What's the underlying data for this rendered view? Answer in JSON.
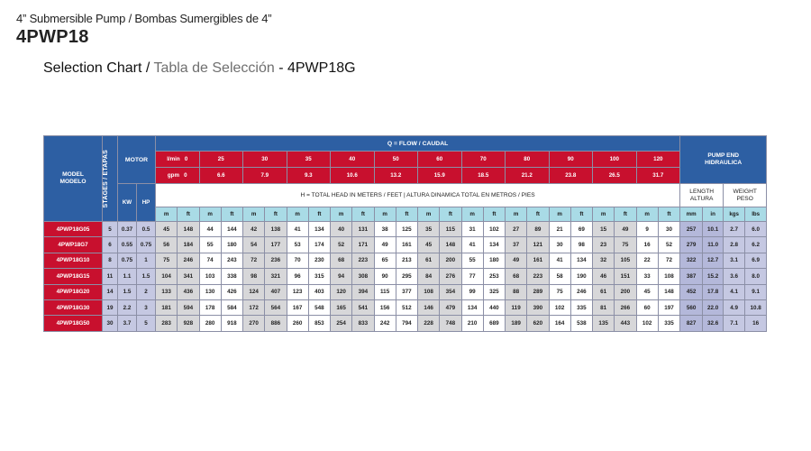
{
  "header": {
    "subtitle": "4” Submersible Pump / Bombas Sumergibles de 4”",
    "title": "4PWP18",
    "chart_title_en": "Selection Chart / ",
    "chart_title_es": "Tabla de Selección",
    "chart_title_model": " - 4PWP18G"
  },
  "table": {
    "col_model": "MODEL\nMODELO",
    "col_model_en": "MODEL",
    "col_model_es": "MODELO",
    "col_stages": "STAGES / ETAPAS",
    "col_motor": "MOTOR",
    "col_kw": "KW",
    "col_hp": "HP",
    "flow_header": "Q = FLOW / CAUDAL",
    "lmin_label": "l/min",
    "gpm_label": "gpm",
    "flow_lmin": [
      "0",
      "25",
      "30",
      "35",
      "40",
      "50",
      "60",
      "70",
      "80",
      "90",
      "100",
      "120"
    ],
    "flow_gpm": [
      "0",
      "6.6",
      "7.9",
      "9.3",
      "10.6",
      "13.2",
      "15.9",
      "18.5",
      "21.2",
      "23.8",
      "26.5",
      "31.7"
    ],
    "head_header": "H = TOTAL HEAD IN METERS / FEET | ALTURA DINAMICA TOTAL EN METROS / PIES",
    "pump_end_en": "PUMP END",
    "pump_end_es": "HIDRAULICA",
    "length_en": "LENGTH",
    "length_es": "ALTURA",
    "weight_en": "WEIGHT",
    "weight_es": "PESO",
    "unit_m": "m",
    "unit_ft": "ft",
    "unit_mm": "mm",
    "unit_in": "in",
    "unit_kgs": "kgs",
    "unit_lbs": "lbs",
    "rows": [
      {
        "model": "4PWP18G05",
        "stages": "5",
        "kw": "0.37",
        "hp": "0.5",
        "head": [
          "45",
          "148",
          "44",
          "144",
          "42",
          "138",
          "41",
          "134",
          "40",
          "131",
          "38",
          "125",
          "35",
          "115",
          "31",
          "102",
          "27",
          "89",
          "21",
          "69",
          "15",
          "49",
          "9",
          "30"
        ],
        "mm": "257",
        "in": "10.1",
        "kgs": "2.7",
        "lbs": "6.0"
      },
      {
        "model": "4PWP18G7",
        "stages": "6",
        "kw": "0.55",
        "hp": "0.75",
        "head": [
          "56",
          "184",
          "55",
          "180",
          "54",
          "177",
          "53",
          "174",
          "52",
          "171",
          "49",
          "161",
          "45",
          "148",
          "41",
          "134",
          "37",
          "121",
          "30",
          "98",
          "23",
          "75",
          "16",
          "52"
        ],
        "mm": "279",
        "in": "11.0",
        "kgs": "2.8",
        "lbs": "6.2"
      },
      {
        "model": "4PWP18G10",
        "stages": "8",
        "kw": "0.75",
        "hp": "1",
        "head": [
          "75",
          "246",
          "74",
          "243",
          "72",
          "236",
          "70",
          "230",
          "68",
          "223",
          "65",
          "213",
          "61",
          "200",
          "55",
          "180",
          "49",
          "161",
          "41",
          "134",
          "32",
          "105",
          "22",
          "72"
        ],
        "mm": "322",
        "in": "12.7",
        "kgs": "3.1",
        "lbs": "6.9"
      },
      {
        "model": "4PWP18G15",
        "stages": "11",
        "kw": "1.1",
        "hp": "1.5",
        "head": [
          "104",
          "341",
          "103",
          "338",
          "98",
          "321",
          "96",
          "315",
          "94",
          "308",
          "90",
          "295",
          "84",
          "276",
          "77",
          "253",
          "68",
          "223",
          "58",
          "190",
          "46",
          "151",
          "33",
          "108"
        ],
        "mm": "387",
        "in": "15.2",
        "kgs": "3.6",
        "lbs": "8.0"
      },
      {
        "model": "4PWP18G20",
        "stages": "14",
        "kw": "1.5",
        "hp": "2",
        "head": [
          "133",
          "436",
          "130",
          "426",
          "124",
          "407",
          "123",
          "403",
          "120",
          "394",
          "115",
          "377",
          "108",
          "354",
          "99",
          "325",
          "88",
          "289",
          "75",
          "246",
          "61",
          "200",
          "45",
          "148"
        ],
        "mm": "452",
        "in": "17.8",
        "kgs": "4.1",
        "lbs": "9.1"
      },
      {
        "model": "4PWP18G30",
        "stages": "19",
        "kw": "2.2",
        "hp": "3",
        "head": [
          "181",
          "594",
          "178",
          "584",
          "172",
          "564",
          "167",
          "548",
          "165",
          "541",
          "156",
          "512",
          "146",
          "479",
          "134",
          "440",
          "119",
          "390",
          "102",
          "335",
          "81",
          "266",
          "60",
          "197"
        ],
        "mm": "560",
        "in": "22.0",
        "kgs": "4.9",
        "lbs": "10.8"
      },
      {
        "model": "4PWP18G50",
        "stages": "30",
        "kw": "3.7",
        "hp": "5",
        "head": [
          "283",
          "928",
          "280",
          "918",
          "270",
          "886",
          "260",
          "853",
          "254",
          "833",
          "242",
          "794",
          "228",
          "748",
          "210",
          "689",
          "189",
          "620",
          "164",
          "538",
          "135",
          "443",
          "102",
          "335"
        ],
        "mm": "827",
        "in": "32.6",
        "kgs": "7.1",
        "lbs": "16"
      }
    ]
  },
  "colors": {
    "header_blue": "#2d5fa3",
    "header_red": "#c8102e",
    "unit_cyan": "#a9dbe6",
    "lavender": "#c5c8e2",
    "grey_band": "#d7d7d9"
  }
}
